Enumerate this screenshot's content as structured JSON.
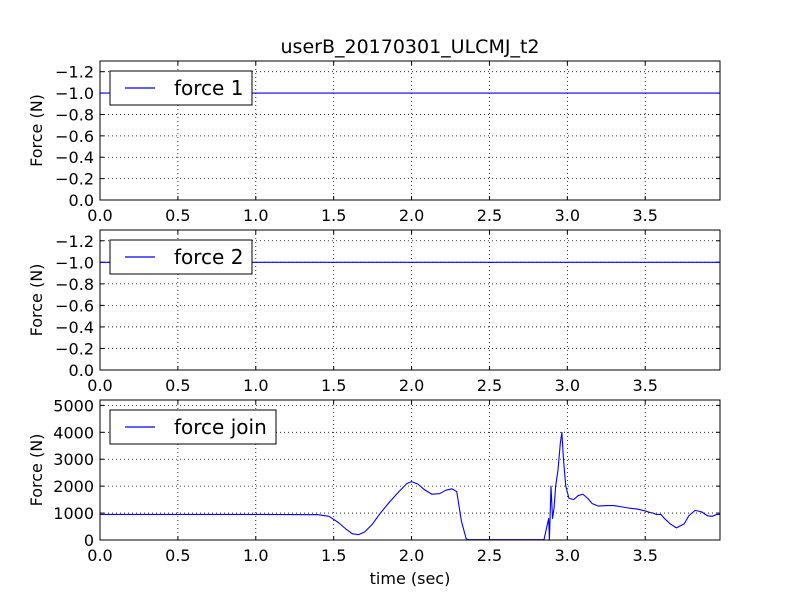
{
  "figure": {
    "title": "userB_20170301_ULCMJ_t2",
    "xlabel": "time (sec)",
    "background": "#ffffff",
    "line_color": "#0000ff"
  },
  "chart_data": [
    {
      "type": "line",
      "title": "userB_20170301_ULCMJ_t2",
      "xlabel": "",
      "ylabel": "Force (N)",
      "xlim": [
        0.0,
        3.98
      ],
      "ylim": [
        0.0,
        -1.3
      ],
      "y_inverted": true,
      "grid": true,
      "legend_position": "top-left",
      "x_ticks": [
        "0.0",
        "0.5",
        "1.0",
        "1.5",
        "2.0",
        "2.5",
        "3.0",
        "3.5"
      ],
      "x_tick_values": [
        0.0,
        0.5,
        1.0,
        1.5,
        2.0,
        2.5,
        3.0,
        3.5
      ],
      "y_ticks": [
        "−1.2",
        "−1.0",
        "−0.8",
        "−0.6",
        "−0.4",
        "−0.2",
        "0.0"
      ],
      "y_tick_values": [
        -1.2,
        -1.0,
        -0.8,
        -0.6,
        -0.4,
        -0.2,
        0.0
      ],
      "series": [
        {
          "name": "force 1",
          "color": "#0000ff",
          "x": [
            0.0,
            3.98
          ],
          "y": [
            -1.0,
            -1.0
          ]
        }
      ]
    },
    {
      "type": "line",
      "title": "",
      "xlabel": "",
      "ylabel": "Force (N)",
      "xlim": [
        0.0,
        3.98
      ],
      "ylim": [
        0.0,
        -1.3
      ],
      "y_inverted": true,
      "grid": true,
      "legend_position": "top-left",
      "x_ticks": [
        "0.0",
        "0.5",
        "1.0",
        "1.5",
        "2.0",
        "2.5",
        "3.0",
        "3.5"
      ],
      "x_tick_values": [
        0.0,
        0.5,
        1.0,
        1.5,
        2.0,
        2.5,
        3.0,
        3.5
      ],
      "y_ticks": [
        "−1.2",
        "−1.0",
        "−0.8",
        "−0.6",
        "−0.4",
        "−0.2",
        "0.0"
      ],
      "y_tick_values": [
        -1.2,
        -1.0,
        -0.8,
        -0.6,
        -0.4,
        -0.2,
        0.0
      ],
      "series": [
        {
          "name": "force 2",
          "color": "#0000ff",
          "x": [
            0.0,
            3.98
          ],
          "y": [
            -1.0,
            -1.0
          ]
        }
      ]
    },
    {
      "type": "line",
      "title": "",
      "xlabel": "time (sec)",
      "ylabel": "Force (N)",
      "xlim": [
        0.0,
        3.98
      ],
      "ylim": [
        0,
        5200
      ],
      "y_inverted": false,
      "grid": true,
      "legend_position": "top-left",
      "x_ticks": [
        "0.0",
        "0.5",
        "1.0",
        "1.5",
        "2.0",
        "2.5",
        "3.0",
        "3.5"
      ],
      "x_tick_values": [
        0.0,
        0.5,
        1.0,
        1.5,
        2.0,
        2.5,
        3.0,
        3.5
      ],
      "y_ticks": [
        "0",
        "1000",
        "2000",
        "3000",
        "4000",
        "5000"
      ],
      "y_tick_values": [
        0,
        1000,
        2000,
        3000,
        4000,
        5000
      ],
      "series": [
        {
          "name": "force join",
          "color": "#0000ff",
          "x": [
            0.0,
            0.5,
            1.0,
            1.4,
            1.47,
            1.53,
            1.58,
            1.62,
            1.66,
            1.7,
            1.75,
            1.8,
            1.86,
            1.92,
            1.97,
            2.0,
            2.04,
            2.08,
            2.13,
            2.18,
            2.22,
            2.26,
            2.29,
            2.32,
            2.35,
            2.36,
            2.5,
            2.7,
            2.85,
            2.88,
            2.885,
            2.895,
            2.905,
            2.915,
            2.925,
            2.94,
            2.955,
            2.965,
            2.975,
            2.99,
            3.01,
            3.04,
            3.07,
            3.1,
            3.13,
            3.16,
            3.2,
            3.25,
            3.3,
            3.35,
            3.4,
            3.45,
            3.5,
            3.53,
            3.55,
            3.57,
            3.6,
            3.62,
            3.66,
            3.7,
            3.75,
            3.78,
            3.82,
            3.86,
            3.9,
            3.93,
            3.96,
            3.98
          ],
          "y": [
            950,
            950,
            950,
            940,
            880,
            650,
            400,
            230,
            200,
            300,
            600,
            1000,
            1420,
            1800,
            2100,
            2170,
            2080,
            1880,
            1700,
            1720,
            1850,
            1900,
            1800,
            700,
            60,
            10,
            10,
            10,
            10,
            800,
            0,
            2000,
            800,
            1200,
            2000,
            2600,
            3600,
            4000,
            3000,
            2000,
            1550,
            1500,
            1650,
            1700,
            1550,
            1350,
            1260,
            1280,
            1280,
            1230,
            1180,
            1150,
            1080,
            1020,
            1000,
            950,
            950,
            820,
            600,
            450,
            600,
            900,
            1100,
            1050,
            900,
            880,
            950,
            950
          ]
        }
      ]
    }
  ]
}
